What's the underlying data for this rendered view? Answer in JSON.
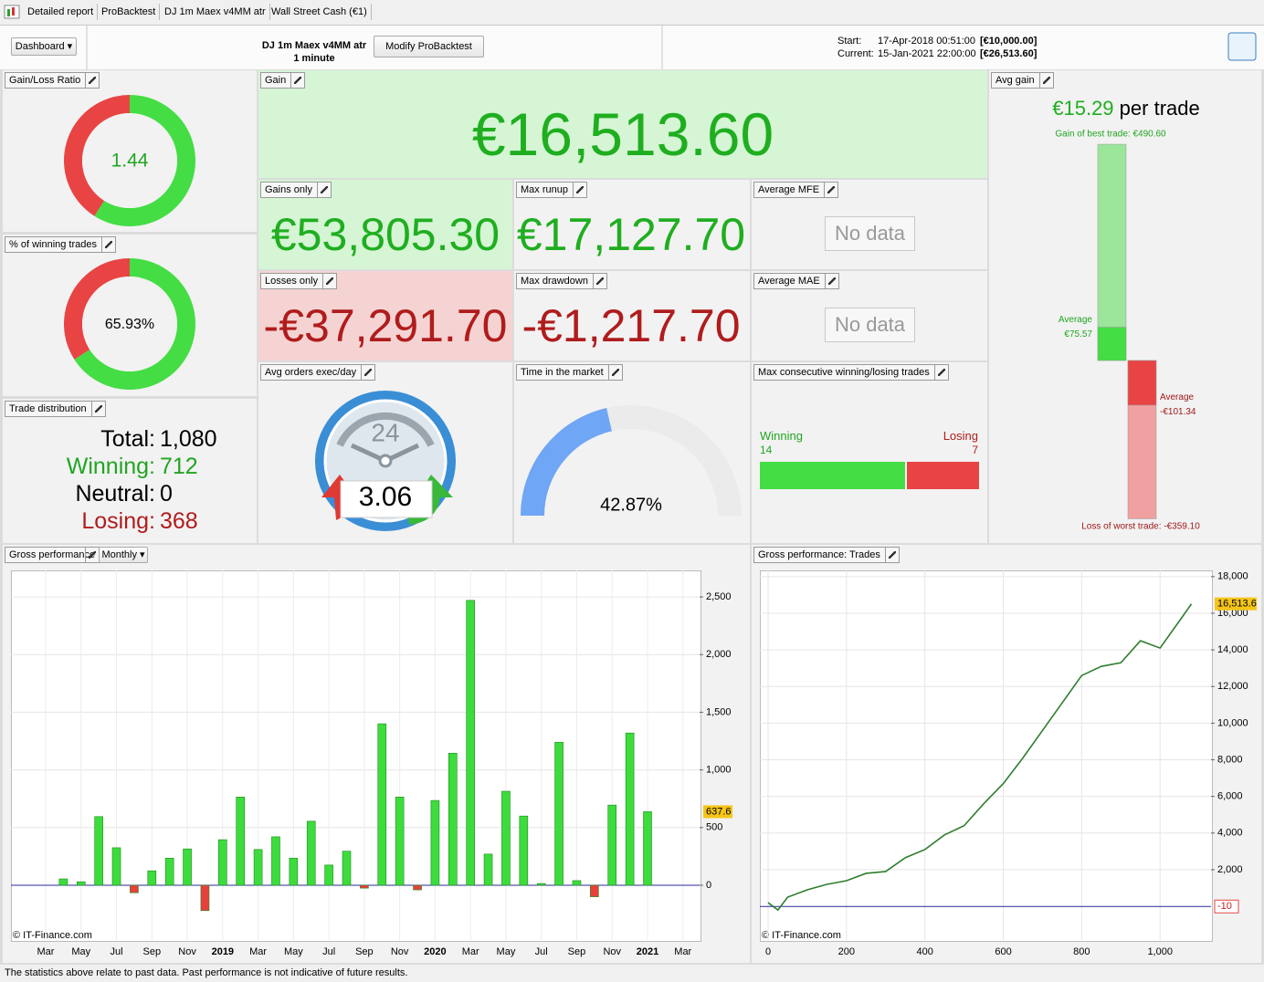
{
  "tabs": [
    "Detailed report",
    "ProBacktest",
    "DJ 1m Maex v4MM atr",
    "Wall Street Cash (€1)"
  ],
  "toolbar": {
    "dashboard_button": "Dashboard",
    "strategy_name": "DJ 1m Maex v4MM atr",
    "timeframe": "1 minute",
    "modify_button": "Modify ProBacktest",
    "start_label": "Start:",
    "start_date": "17-Apr-2018 00:51:00",
    "start_capital": "[€10,000.00]",
    "current_label": "Current:",
    "current_date": "15-Jan-2021 22:00:00",
    "current_capital": "[€26,513.60]"
  },
  "panels": {
    "gain_loss_ratio": {
      "title": "Gain/Loss Ratio",
      "value": 1.44
    },
    "winning_trades_pct": {
      "title": "% of winning trades",
      "value": 65.93,
      "label": "65.93%"
    },
    "trade_distribution": {
      "title": "Trade distribution",
      "rows": [
        {
          "label": "Total:",
          "value": "1,080"
        },
        {
          "label": "Winning:",
          "value": "712"
        },
        {
          "label": "Neutral:",
          "value": "0"
        },
        {
          "label": "Losing:",
          "value": "368"
        }
      ]
    },
    "gain": {
      "title": "Gain",
      "value": "€16,513.60"
    },
    "gains_only": {
      "title": "Gains only",
      "value": "€53,805.30"
    },
    "max_runup": {
      "title": "Max runup",
      "value": "€17,127.70"
    },
    "average_mfe": {
      "title": "Average MFE",
      "value": "No data"
    },
    "losses_only": {
      "title": "Losses only",
      "value": "-€37,291.70"
    },
    "max_drawdown": {
      "title": "Max drawdown",
      "value": "-€1,217.70"
    },
    "average_mae": {
      "title": "Average MAE",
      "value": "No data"
    },
    "avg_orders_per_day": {
      "title": "Avg orders exec/day",
      "value": "3.06",
      "clock_label": "24"
    },
    "time_in_market": {
      "title": "Time in the market",
      "value": 42.87,
      "label": "42.87%"
    },
    "max_consecutive": {
      "title": "Max consecutive winning/losing trades",
      "winning_label": "Winning",
      "winning": 14,
      "losing_label": "Losing",
      "losing": 7
    },
    "avg_gain": {
      "title": "Avg gain",
      "value": "€15.29",
      "unit": "per trade",
      "best": {
        "value": 490.6,
        "label": "Gain of best trade: €490.60"
      },
      "average_gain": {
        "value": 75.57,
        "name": "Average",
        "label": "€75.57"
      },
      "average_loss": {
        "value": -101.34,
        "name": "Average",
        "label": "-€101.34"
      },
      "worst": {
        "value": -359.1,
        "label": "Loss of worst trade: -€359.10"
      }
    }
  },
  "chart_data": [
    {
      "type": "bar",
      "title": "Gross performance",
      "period": "Monthly",
      "watermark": "© IT-Finance.com",
      "categories": [
        "Mar",
        null,
        "May",
        null,
        "Jul",
        null,
        "Sep",
        null,
        "Nov",
        null,
        "2019",
        null,
        "Mar",
        null,
        "May",
        null,
        "Jul",
        null,
        "Sep",
        null,
        "Nov",
        null,
        "2020",
        null,
        "Mar",
        null,
        "May",
        null,
        "Jul",
        null,
        "Sep",
        null,
        "Nov",
        null,
        "2021",
        null,
        "Mar"
      ],
      "values": [
        null,
        55,
        30,
        595,
        325,
        -65,
        125,
        235,
        315,
        -220,
        395,
        765,
        310,
        420,
        235,
        555,
        175,
        295,
        -25,
        1400,
        765,
        -40,
        735,
        1145,
        2470,
        270,
        815,
        600,
        15,
        1240,
        40,
        -100,
        695,
        1320,
        637.6,
        null,
        null
      ],
      "positive_color": "#3ddc3d",
      "negative_color": "#e8403c",
      "ylim": [
        -475,
        2730
      ],
      "yticks": [
        0,
        500,
        {
          "value": 1000,
          "label": "1,000"
        },
        {
          "value": 1500,
          "label": "1,500"
        },
        {
          "value": 2000,
          "label": "2,000"
        },
        {
          "value": 2500,
          "label": "2,500"
        }
      ],
      "grid": true
    },
    {
      "type": "line",
      "title": "Gross performance: Trades",
      "watermark": "© IT-Finance.com",
      "x": [
        0,
        25,
        50,
        100,
        150,
        200,
        250,
        300,
        350,
        400,
        450,
        500,
        550,
        600,
        650,
        700,
        750,
        800,
        850,
        900,
        950,
        1000,
        1050,
        1080
      ],
      "values": [
        200,
        -200,
        500,
        900,
        1200,
        1400,
        1800,
        1900,
        2650,
        3100,
        3900,
        4400,
        5600,
        6700,
        8100,
        9600,
        11100,
        12600,
        13100,
        13300,
        14500,
        14100,
        15600,
        16513.6
      ],
      "value_labels": [
        null,
        null,
        null,
        null,
        null,
        null,
        null,
        null,
        null,
        null,
        null,
        null,
        null,
        null,
        null,
        null,
        null,
        null,
        null,
        null,
        null,
        null,
        null,
        "16,513.6"
      ],
      "color": "#2e7d2e",
      "reference_line": -10,
      "xlim": [
        -21,
        1130
      ],
      "xticks": [
        0,
        200,
        400,
        600,
        800,
        {
          "value": 1000,
          "label": "1,000"
        }
      ],
      "ylim": [
        -1840,
        18340
      ],
      "yticks": [
        {
          "value": 2000,
          "label": "2,000"
        },
        {
          "value": 4000,
          "label": "4,000"
        },
        {
          "value": 6000,
          "label": "6,000"
        },
        {
          "value": 8000,
          "label": "8,000"
        },
        {
          "value": 10000,
          "label": "10,000"
        },
        {
          "value": 12000,
          "label": "12,000"
        },
        {
          "value": 14000,
          "label": "14,000"
        },
        {
          "value": 16000,
          "label": "16,000"
        },
        {
          "value": 18000,
          "label": "18,000"
        }
      ],
      "grid": true
    }
  ],
  "footer": "The statistics above relate to past data. Past performance is not indicative of future results."
}
